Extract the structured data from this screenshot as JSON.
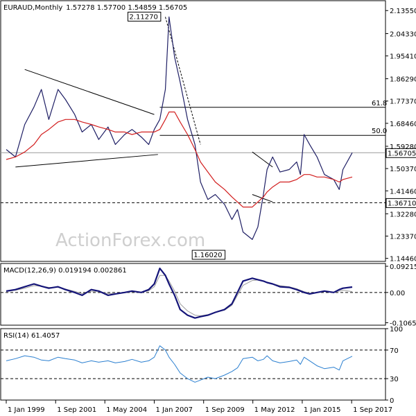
{
  "chart_data": [
    {
      "type": "line",
      "panel": "price",
      "title": "EURAUD,Monthly",
      "ohlc_text": "1.57278 1.57700 1.54859 1.56705",
      "ylim": [
        1.1325,
        2.175
      ],
      "yticks": [
        "2.13550",
        "2.04330",
        "1.95410",
        "1.86290",
        "1.77370",
        "1.68460",
        "1.59280",
        "1.50370",
        "1.41460",
        "1.32280",
        "1.23370",
        "1.14460"
      ],
      "ytick_values": [
        2.1355,
        2.0433,
        1.9541,
        1.8629,
        1.7737,
        1.6846,
        1.5928,
        1.5037,
        1.4146,
        1.3228,
        1.2337,
        1.1446
      ],
      "x_dates": [
        1999.0,
        1999.5,
        2000.0,
        2000.5,
        2000.9,
        2001.3,
        2001.8,
        2002.2,
        2002.7,
        2003.1,
        2003.6,
        2004.0,
        2004.5,
        2004.9,
        2005.4,
        2005.8,
        2006.3,
        2006.7,
        2007.0,
        2007.3,
        2007.6,
        2007.8,
        2008.1,
        2008.4,
        2008.8,
        2009.2,
        2009.5,
        2009.9,
        2010.3,
        2010.8,
        2011.2,
        2011.5,
        2011.8,
        2012.3,
        2012.6,
        2012.9,
        2013.1,
        2013.4,
        2013.8,
        2014.3,
        2014.7,
        2014.9,
        2015.1,
        2015.4,
        2015.8,
        2016.2,
        2016.7,
        2017.0,
        2017.2,
        2017.7
      ],
      "close": [
        1.58,
        1.55,
        1.68,
        1.75,
        1.82,
        1.7,
        1.82,
        1.78,
        1.72,
        1.65,
        1.68,
        1.62,
        1.67,
        1.6,
        1.64,
        1.66,
        1.63,
        1.6,
        1.66,
        1.7,
        1.82,
        2.11,
        1.95,
        1.85,
        1.7,
        1.6,
        1.45,
        1.38,
        1.4,
        1.36,
        1.3,
        1.34,
        1.25,
        1.22,
        1.27,
        1.4,
        1.5,
        1.55,
        1.49,
        1.5,
        1.53,
        1.48,
        1.64,
        1.6,
        1.55,
        1.48,
        1.46,
        1.42,
        1.5,
        1.567
      ],
      "ma": [
        1.54,
        1.55,
        1.57,
        1.6,
        1.64,
        1.66,
        1.69,
        1.7,
        1.7,
        1.69,
        1.68,
        1.67,
        1.66,
        1.65,
        1.65,
        1.64,
        1.65,
        1.65,
        1.65,
        1.66,
        1.7,
        1.73,
        1.73,
        1.69,
        1.64,
        1.58,
        1.53,
        1.49,
        1.45,
        1.42,
        1.39,
        1.37,
        1.35,
        1.35,
        1.37,
        1.39,
        1.41,
        1.43,
        1.45,
        1.45,
        1.46,
        1.47,
        1.48,
        1.48,
        1.47,
        1.47,
        1.46,
        1.45,
        1.46,
        1.47
      ],
      "annotations": {
        "high_label": "2.11270",
        "low_label": "1.16020",
        "last_price_label": "1.56705",
        "support_label": "1.36710",
        "fib_618_label": "61.8",
        "fib_500_label": "50.0",
        "high_value": 2.1127,
        "low_value": 1.1602,
        "last_price_value": 1.56705,
        "support_value": 1.3671,
        "fib_618_value": 1.7487,
        "fib_500_value": 1.6365
      },
      "watermark": "ActionForex.com"
    },
    {
      "type": "line",
      "panel": "macd",
      "title": "MACD(12,26,9) 0.019194 0.002861",
      "ylim": [
        -0.115,
        0.102
      ],
      "yticks": [
        "0.092158",
        "0.00",
        "-0.106503"
      ],
      "ytick_values": [
        0.092158,
        0.0,
        -0.106503
      ],
      "macd": [
        0.005,
        0.01,
        0.02,
        0.03,
        0.022,
        0.015,
        0.02,
        0.01,
        0.0,
        -0.01,
        0.01,
        0.005,
        -0.01,
        -0.005,
        0.0,
        0.005,
        0.0,
        0.01,
        0.03,
        0.085,
        0.06,
        0.03,
        -0.01,
        -0.06,
        -0.08,
        -0.09,
        -0.085,
        -0.08,
        -0.07,
        -0.06,
        -0.04,
        0.0,
        0.04,
        0.05,
        0.045,
        0.04,
        0.035,
        0.03,
        0.02,
        0.018,
        0.01,
        0.005,
        0.0,
        -0.005,
        0.0,
        0.005,
        0.0,
        0.01,
        0.015,
        0.019
      ],
      "signal": [
        0.003,
        0.008,
        0.015,
        0.024,
        0.022,
        0.018,
        0.018,
        0.012,
        0.004,
        -0.004,
        0.004,
        0.004,
        -0.004,
        -0.004,
        -0.001,
        0.003,
        0.001,
        0.006,
        0.02,
        0.06,
        0.06,
        0.04,
        0.005,
        -0.04,
        -0.065,
        -0.08,
        -0.082,
        -0.078,
        -0.07,
        -0.062,
        -0.045,
        -0.01,
        0.025,
        0.042,
        0.044,
        0.04,
        0.035,
        0.031,
        0.024,
        0.02,
        0.013,
        0.008,
        0.003,
        -0.002,
        -0.001,
        0.003,
        0.001,
        0.005,
        0.008,
        0.0029
      ]
    },
    {
      "type": "line",
      "panel": "rsi",
      "title": "RSI(14) 61.4057",
      "ylim": [
        0,
        100
      ],
      "yticks": [
        "100",
        "70",
        "30",
        "0"
      ],
      "ytick_values": [
        100,
        70,
        30,
        0
      ],
      "levels": [
        70,
        30
      ],
      "rsi": [
        55,
        58,
        62,
        60,
        56,
        55,
        60,
        58,
        56,
        52,
        55,
        53,
        55,
        52,
        54,
        57,
        53,
        55,
        60,
        76,
        70,
        60,
        50,
        38,
        30,
        25,
        28,
        32,
        30,
        35,
        40,
        45,
        58,
        60,
        55,
        57,
        62,
        55,
        52,
        54,
        56,
        50,
        60,
        55,
        48,
        44,
        46,
        42,
        55,
        61.4
      ]
    }
  ],
  "x_axis": {
    "labels": [
      "1 Jan 1999",
      "1 Sep 2001",
      "1 May 2004",
      "1 Jan 2007",
      "1 Sep 2009",
      "1 May 2012",
      "1 Jan 2015",
      "1 Sep 2017"
    ],
    "values": [
      1999.0,
      2001.67,
      2004.33,
      2007.0,
      2009.67,
      2012.33,
      2015.0,
      2017.67
    ],
    "range": [
      1998.7,
      2019.5
    ]
  },
  "colors": {
    "price": "#1e1e64",
    "ma": "#d21e1e",
    "macd": "#141478",
    "signal": "#9a9a9a",
    "rsi": "#2a7fd0",
    "guides": "#000000",
    "trendline": "#000000"
  }
}
